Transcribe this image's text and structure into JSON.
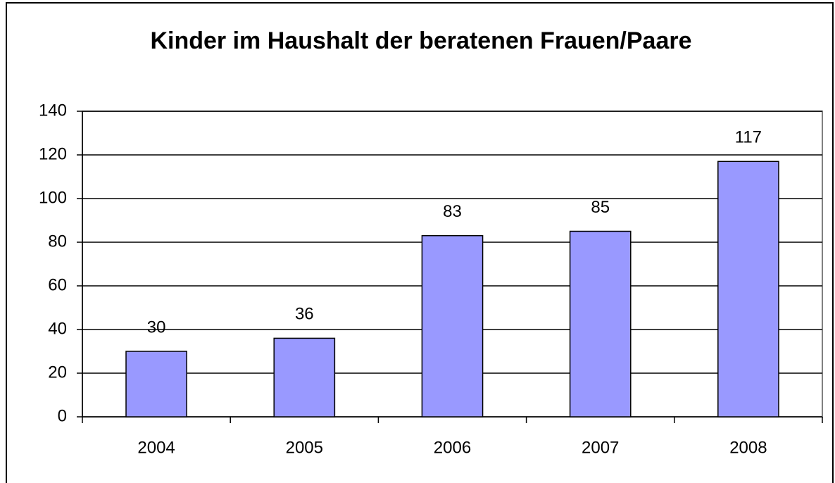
{
  "chart_data": {
    "type": "bar",
    "title": "Kinder im Haushalt der beratenen Frauen/Paare",
    "categories": [
      "2004",
      "2005",
      "2006",
      "2007",
      "2008"
    ],
    "values": [
      30,
      36,
      83,
      85,
      117
    ],
    "color": "#9999ff",
    "ylim": [
      0,
      140
    ],
    "yticks": [
      0,
      20,
      40,
      60,
      80,
      100,
      120,
      140
    ],
    "grid": true
  }
}
